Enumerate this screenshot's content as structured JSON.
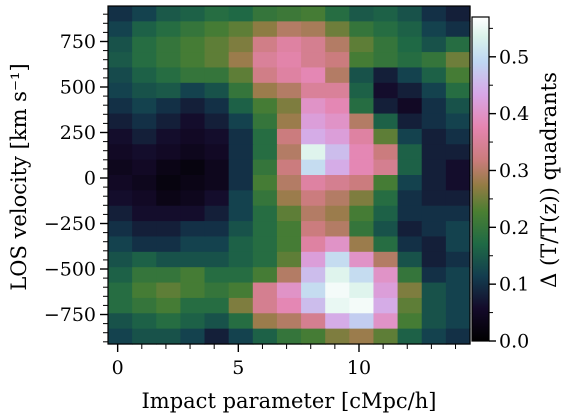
{
  "chart_data": {
    "type": "heatmap",
    "xlabel": "Impact parameter [cMpc/h]",
    "ylabel": "LOS velocity [km s⁻¹]",
    "colorbar_label": "Δ (T/T(z)) quadrants",
    "colormap": "cubehelix-like (dark navy → teal/green → pink → lavender → white)",
    "x_ticks": [
      0,
      5,
      10
    ],
    "x_tick_labels": [
      "0",
      "5",
      "10"
    ],
    "y_ticks": [
      750,
      500,
      250,
      0,
      -250,
      -500,
      -750
    ],
    "y_tick_labels": [
      "750",
      "500",
      "250",
      "0",
      "−250",
      "−500",
      "−750"
    ],
    "colorbar_ticks": [
      0.0,
      0.1,
      0.2,
      0.3,
      0.4,
      0.5
    ],
    "colorbar_tick_labels": [
      "0.0",
      "0.1",
      "0.2",
      "0.3",
      "0.4",
      "0.5"
    ],
    "xlim": [
      -0.4,
      14.6
    ],
    "ylim": [
      -912,
      945
    ],
    "clim": [
      0.0,
      0.57
    ],
    "grid": false,
    "n_cols": 15,
    "n_rows": 22,
    "x_centers_note": "columns centred at 0..14 (cMpc/h)",
    "y_rows_note": "rows run from top (~920 km/s) to bottom (~-880 km/s)",
    "values": [
      [
        0.1,
        0.12,
        0.15,
        0.16,
        0.18,
        0.17,
        0.2,
        0.21,
        0.22,
        0.18,
        0.15,
        0.16,
        0.14,
        0.1,
        0.08
      ],
      [
        0.12,
        0.16,
        0.18,
        0.2,
        0.22,
        0.24,
        0.27,
        0.3,
        0.29,
        0.25,
        0.2,
        0.18,
        0.16,
        0.12,
        0.1
      ],
      [
        0.14,
        0.18,
        0.2,
        0.22,
        0.24,
        0.26,
        0.33,
        0.36,
        0.34,
        0.3,
        0.24,
        0.2,
        0.17,
        0.14,
        0.18
      ],
      [
        0.15,
        0.18,
        0.2,
        0.22,
        0.24,
        0.28,
        0.35,
        0.37,
        0.34,
        0.32,
        0.22,
        0.2,
        0.18,
        0.2,
        0.25
      ],
      [
        0.13,
        0.16,
        0.18,
        0.2,
        0.2,
        0.24,
        0.33,
        0.36,
        0.38,
        0.3,
        0.14,
        0.08,
        0.12,
        0.16,
        0.22
      ],
      [
        0.12,
        0.14,
        0.15,
        0.12,
        0.14,
        0.2,
        0.28,
        0.3,
        0.35,
        0.35,
        0.16,
        0.06,
        0.08,
        0.12,
        0.18
      ],
      [
        0.1,
        0.12,
        0.1,
        0.08,
        0.1,
        0.16,
        0.22,
        0.26,
        0.4,
        0.38,
        0.18,
        0.08,
        0.05,
        0.1,
        0.14
      ],
      [
        0.08,
        0.1,
        0.08,
        0.06,
        0.08,
        0.12,
        0.2,
        0.28,
        0.42,
        0.4,
        0.3,
        0.16,
        0.08,
        0.1,
        0.12
      ],
      [
        0.06,
        0.08,
        0.06,
        0.05,
        0.06,
        0.1,
        0.18,
        0.32,
        0.44,
        0.42,
        0.36,
        0.24,
        0.12,
        0.08,
        0.1
      ],
      [
        0.05,
        0.06,
        0.05,
        0.04,
        0.05,
        0.1,
        0.18,
        0.3,
        0.54,
        0.46,
        0.38,
        0.32,
        0.16,
        0.08,
        0.08
      ],
      [
        0.04,
        0.05,
        0.03,
        0.02,
        0.04,
        0.1,
        0.2,
        0.32,
        0.5,
        0.44,
        0.38,
        0.34,
        0.16,
        0.08,
        0.06
      ],
      [
        0.05,
        0.04,
        0.02,
        0.03,
        0.04,
        0.1,
        0.22,
        0.3,
        0.36,
        0.34,
        0.32,
        0.22,
        0.12,
        0.08,
        0.06
      ],
      [
        0.06,
        0.05,
        0.03,
        0.04,
        0.06,
        0.12,
        0.2,
        0.28,
        0.32,
        0.3,
        0.26,
        0.18,
        0.1,
        0.08,
        0.08
      ],
      [
        0.08,
        0.06,
        0.06,
        0.06,
        0.08,
        0.12,
        0.18,
        0.24,
        0.3,
        0.28,
        0.22,
        0.16,
        0.1,
        0.1,
        0.1
      ],
      [
        0.1,
        0.08,
        0.08,
        0.1,
        0.1,
        0.14,
        0.18,
        0.22,
        0.32,
        0.3,
        0.2,
        0.14,
        0.08,
        0.1,
        0.12
      ],
      [
        0.12,
        0.1,
        0.1,
        0.12,
        0.12,
        0.16,
        0.18,
        0.22,
        0.36,
        0.4,
        0.28,
        0.18,
        0.1,
        0.08,
        0.12
      ],
      [
        0.14,
        0.16,
        0.14,
        0.14,
        0.14,
        0.16,
        0.18,
        0.24,
        0.42,
        0.5,
        0.4,
        0.3,
        0.14,
        0.08,
        0.1
      ],
      [
        0.16,
        0.2,
        0.2,
        0.22,
        0.18,
        0.18,
        0.22,
        0.3,
        0.46,
        0.54,
        0.5,
        0.4,
        0.2,
        0.1,
        0.12
      ],
      [
        0.18,
        0.22,
        0.24,
        0.22,
        0.2,
        0.22,
        0.34,
        0.4,
        0.5,
        0.56,
        0.54,
        0.42,
        0.26,
        0.14,
        0.12
      ],
      [
        0.18,
        0.2,
        0.22,
        0.18,
        0.18,
        0.26,
        0.34,
        0.38,
        0.46,
        0.55,
        0.56,
        0.44,
        0.24,
        0.14,
        0.12
      ],
      [
        0.14,
        0.16,
        0.18,
        0.16,
        0.14,
        0.18,
        0.28,
        0.3,
        0.34,
        0.44,
        0.48,
        0.4,
        0.22,
        0.14,
        0.12
      ],
      [
        0.12,
        0.14,
        0.14,
        0.12,
        0.08,
        0.12,
        0.16,
        0.2,
        0.22,
        0.26,
        0.28,
        0.24,
        0.16,
        0.12,
        0.1
      ]
    ]
  }
}
